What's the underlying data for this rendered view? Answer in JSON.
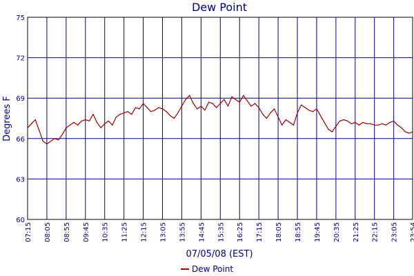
{
  "chart_data": {
    "type": "line",
    "title": "Dew Point",
    "xlabel": "07/05/08 (EST)",
    "ylabel": "Degrees F",
    "ylim": [
      60,
      75
    ],
    "yticks": [
      "60",
      "63",
      "66",
      "69",
      "72",
      "75"
    ],
    "xticks": [
      "07:15",
      "08:05",
      "08:55",
      "09:45",
      "10:35",
      "11:25",
      "12:15",
      "13:05",
      "13:55",
      "14:45",
      "15:35",
      "16:25",
      "17:15",
      "18:05",
      "18:55",
      "19:45",
      "20:35",
      "21:25",
      "22:15",
      "23:05",
      "23:54"
    ],
    "grid": true,
    "legend_position": "bottom-center",
    "series": [
      {
        "name": "Dew Point",
        "color": "#990000",
        "x": [
          "07:15",
          "07:25",
          "07:35",
          "07:45",
          "07:55",
          "08:05",
          "08:15",
          "08:25",
          "08:35",
          "08:45",
          "08:55",
          "09:05",
          "09:15",
          "09:25",
          "09:35",
          "09:45",
          "09:55",
          "10:05",
          "10:15",
          "10:25",
          "10:35",
          "10:45",
          "10:55",
          "11:05",
          "11:15",
          "11:25",
          "11:35",
          "11:45",
          "11:55",
          "12:05",
          "12:15",
          "12:25",
          "12:35",
          "12:45",
          "12:55",
          "13:05",
          "13:15",
          "13:25",
          "13:35",
          "13:45",
          "13:55",
          "14:05",
          "14:15",
          "14:25",
          "14:35",
          "14:45",
          "14:55",
          "15:05",
          "15:15",
          "15:25",
          "15:35",
          "15:45",
          "15:55",
          "16:05",
          "16:15",
          "16:25",
          "16:35",
          "16:45",
          "16:55",
          "17:05",
          "17:15",
          "17:25",
          "17:35",
          "17:45",
          "17:55",
          "18:05",
          "18:15",
          "18:25",
          "18:35",
          "18:45",
          "18:55",
          "19:05",
          "19:15",
          "19:25",
          "19:35",
          "19:45",
          "19:55",
          "20:05",
          "20:15",
          "20:25",
          "20:35",
          "20:45",
          "20:55",
          "21:05",
          "21:15",
          "21:25",
          "21:35",
          "21:45",
          "21:55",
          "22:05",
          "22:15",
          "22:25",
          "22:35",
          "22:45",
          "22:55",
          "23:05",
          "23:15",
          "23:25",
          "23:35",
          "23:45",
          "23:54"
        ],
        "values": [
          66.8,
          67.1,
          67.4,
          66.6,
          65.8,
          65.6,
          65.8,
          66.0,
          65.9,
          66.3,
          66.8,
          67.0,
          67.2,
          67.0,
          67.3,
          67.4,
          67.3,
          67.8,
          67.2,
          66.8,
          67.1,
          67.3,
          67.0,
          67.6,
          67.8,
          67.9,
          68.0,
          67.8,
          68.3,
          68.2,
          68.6,
          68.3,
          68.0,
          68.1,
          68.3,
          68.2,
          68.0,
          67.7,
          67.5,
          67.9,
          68.4,
          68.9,
          69.2,
          68.6,
          68.2,
          68.4,
          68.1,
          68.7,
          68.6,
          68.3,
          68.6,
          68.9,
          68.4,
          69.1,
          68.9,
          68.7,
          69.2,
          68.8,
          68.4,
          68.6,
          68.3,
          67.8,
          67.5,
          67.9,
          68.2,
          67.6,
          67.0,
          67.4,
          67.2,
          67.0,
          67.9,
          68.5,
          68.3,
          68.1,
          68.0,
          68.2,
          67.7,
          67.2,
          66.7,
          66.5,
          66.9,
          67.3,
          67.4,
          67.3,
          67.1,
          67.2,
          67.0,
          67.2,
          67.1,
          67.1,
          67.0,
          67.0,
          67.1,
          67.0,
          67.2,
          67.3,
          67.0,
          66.8,
          66.5,
          66.4,
          66.5
        ]
      }
    ]
  }
}
